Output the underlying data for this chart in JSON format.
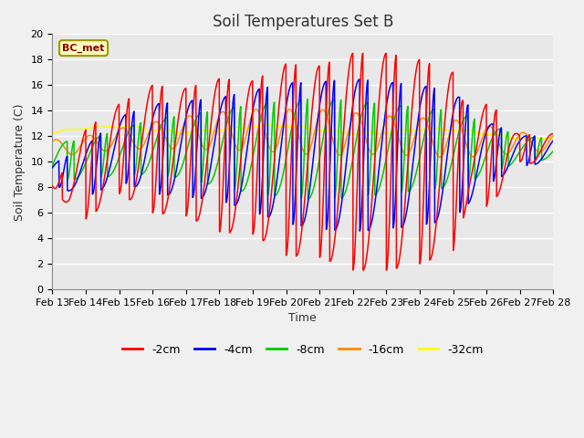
{
  "title": "Soil Temperatures Set B",
  "xlabel": "Time",
  "ylabel": "Soil Temperature (C)",
  "ylim": [
    0,
    20
  ],
  "annotation": "BC_met",
  "legend_labels": [
    "-2cm",
    "-4cm",
    "-8cm",
    "-16cm",
    "-32cm"
  ],
  "line_colors": [
    "#ff0000",
    "#0000ff",
    "#00cc00",
    "#ff8800",
    "#ffff00"
  ],
  "x_tick_labels": [
    "Feb 13",
    "Feb 14",
    "Feb 15",
    "Feb 16",
    "Feb 17",
    "Feb 18",
    "Feb 19",
    "Feb 20",
    "Feb 21",
    "Feb 22",
    "Feb 23",
    "Feb 24",
    "Feb 25",
    "Feb 26",
    "Feb 27",
    "Feb 28"
  ],
  "bg_color": "#e8e8e8",
  "fig_bg": "#f0f0f0",
  "yticks": [
    0,
    2,
    4,
    6,
    8,
    10,
    12,
    14,
    16,
    18,
    20
  ]
}
